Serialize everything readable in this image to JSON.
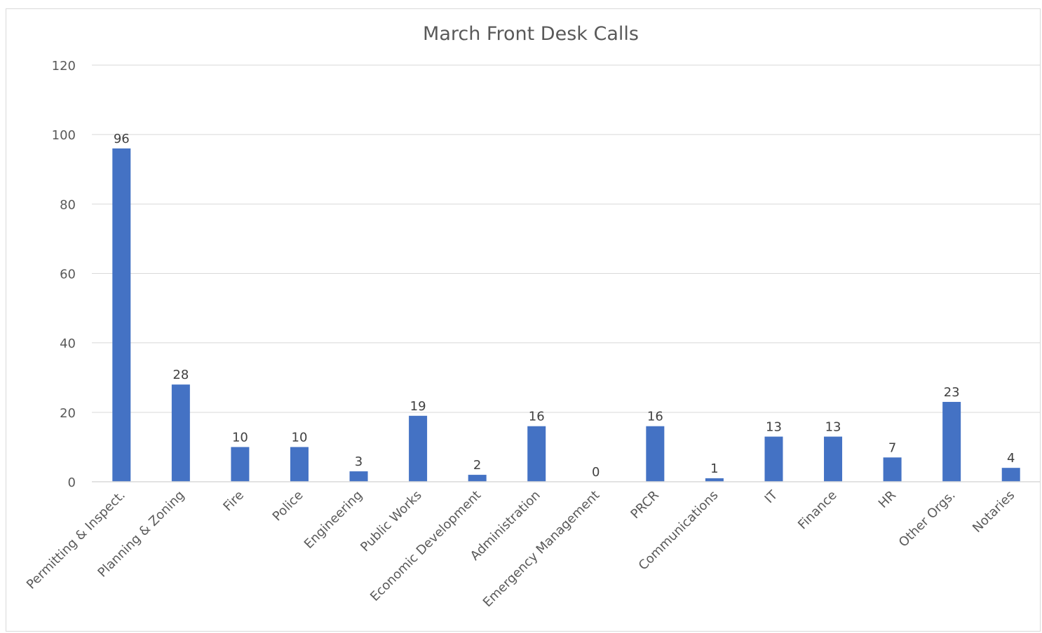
{
  "chart_data": {
    "type": "bar",
    "title": "March Front Desk Calls",
    "xlabel": "",
    "ylabel": "",
    "ylim": [
      0,
      120
    ],
    "yticks": [
      0,
      20,
      40,
      60,
      80,
      100,
      120
    ],
    "grid": true,
    "legend": "none",
    "bar_color": "#4472C4",
    "categories": [
      "Permitting & Inspect.",
      "Planning & Zoning",
      "Fire",
      "Police",
      "Engineering",
      "Public Works",
      "Economic Development",
      "Administration",
      "Emergency Management",
      "PRCR",
      "Communications",
      "IT",
      "Finance",
      "HR",
      "Other Orgs.",
      "Notaries"
    ],
    "values": [
      96,
      28,
      10,
      10,
      3,
      19,
      2,
      16,
      0,
      16,
      1,
      13,
      13,
      7,
      23,
      4
    ]
  }
}
